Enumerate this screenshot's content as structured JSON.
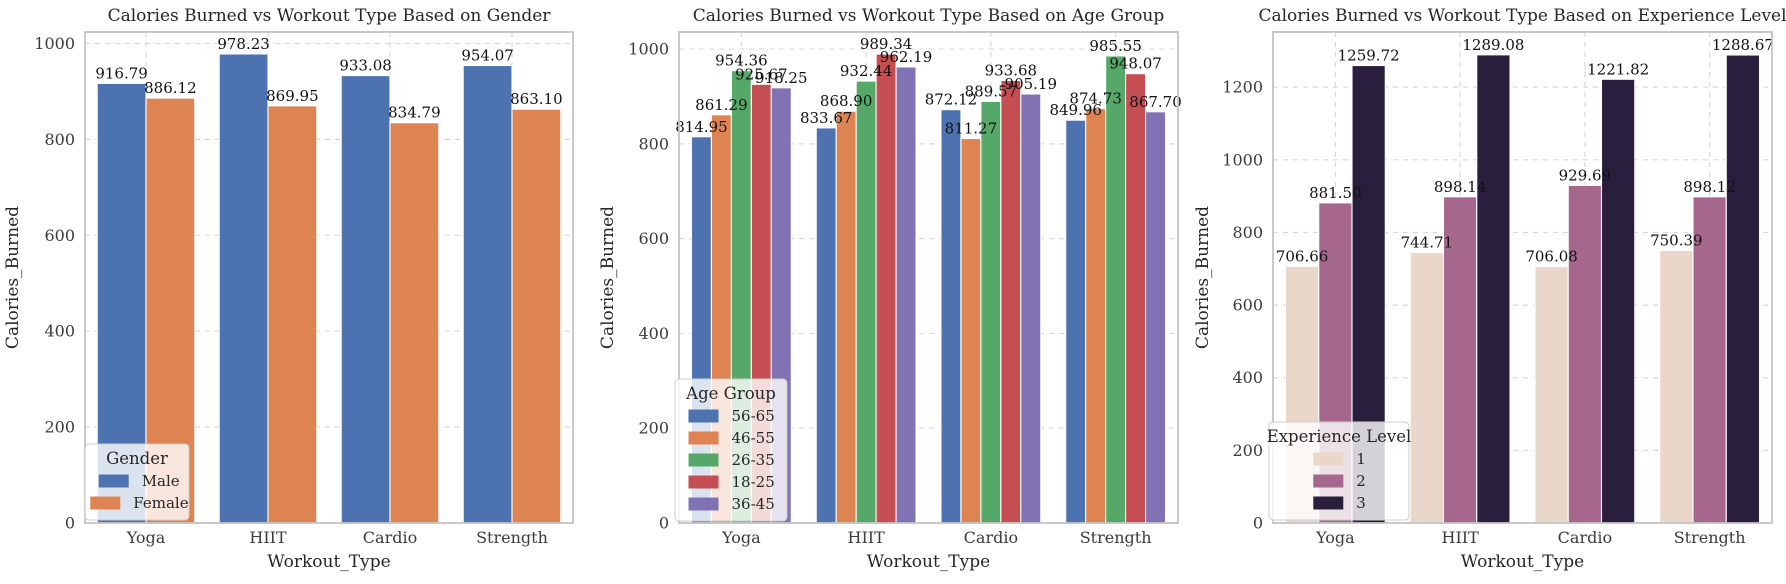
{
  "figure": {
    "background": "#ffffff",
    "text_color": "#262626",
    "tick_color": "#3b3b3b",
    "grid_color": "#d9d9d9",
    "spine_color": "#c3c3c3",
    "bar_edge_color": "#ffffff",
    "legend_bg": "rgba(255,255,255,0.8)",
    "legend_border": "#cccccc"
  },
  "chart_data": [
    {
      "type": "bar",
      "title": "Calories Burned vs Workout Type Based on Gender",
      "xlabel": "Workout_Type",
      "ylabel": "Calories_Burned",
      "categories": [
        "Yoga",
        "HIIT",
        "Cardio",
        "Strength"
      ],
      "legend_title": "Gender",
      "legend_position": "lower left",
      "grid": true,
      "ylim": [
        0,
        1024
      ],
      "yticks": [
        0,
        200,
        400,
        600,
        800,
        1000
      ],
      "series": [
        {
          "name": "Male",
          "color": "#4C72B0",
          "values": [
            916.79,
            978.23,
            933.08,
            954.07
          ]
        },
        {
          "name": "Female",
          "color": "#DD8452",
          "values": [
            886.12,
            869.95,
            834.79,
            863.1
          ]
        }
      ],
      "value_labels": [
        [
          "916.79",
          "978.23",
          "933.08",
          "954.07"
        ],
        [
          "886.12",
          "869.95",
          "834.79",
          "863.10"
        ]
      ]
    },
    {
      "type": "bar",
      "title": "Calories Burned vs Workout Type Based on Age Group",
      "xlabel": "Workout_Type",
      "ylabel": "Calories_Burned",
      "categories": [
        "Yoga",
        "HIIT",
        "Cardio",
        "Strength"
      ],
      "legend_title": "Age Group",
      "legend_position": "lower left",
      "grid": true,
      "ylim": [
        0,
        1036
      ],
      "yticks": [
        0,
        200,
        400,
        600,
        800,
        1000
      ],
      "series": [
        {
          "name": "56-65",
          "color": "#4C72B0",
          "values": [
            814.95,
            833.67,
            872.12,
            849.96
          ]
        },
        {
          "name": "46-55",
          "color": "#DD8452",
          "values": [
            861.29,
            868.9,
            811.27,
            874.73
          ]
        },
        {
          "name": "26-35",
          "color": "#55A868",
          "values": [
            954.36,
            932.44,
            889.57,
            985.55
          ]
        },
        {
          "name": "18-25",
          "color": "#C44E52",
          "values": [
            925.67,
            989.34,
            933.68,
            948.07
          ]
        },
        {
          "name": "36-45",
          "color": "#8172B3",
          "values": [
            918.25,
            962.19,
            905.19,
            867.7
          ]
        }
      ],
      "value_labels": [
        [
          "814.95",
          "833.67",
          "872.12",
          "849.96"
        ],
        [
          "861.29",
          "868.90",
          "811.27",
          "874.73"
        ],
        [
          "954.36",
          "932.44",
          "889.57",
          "985.55"
        ],
        [
          "925.67",
          "989.34",
          "933.68",
          "948.07"
        ],
        [
          "918.25",
          "962.19",
          "905.19",
          "867.70"
        ]
      ]
    },
    {
      "type": "bar",
      "title": "Calories Burned vs Workout Type Based on Experience Level",
      "xlabel": "Workout_Type",
      "ylabel": "Calories_Burned",
      "categories": [
        "Yoga",
        "HIIT",
        "Cardio",
        "Strength"
      ],
      "legend_title": "Experience Level",
      "legend_position": "lower left",
      "grid": true,
      "ylim": [
        0,
        1352
      ],
      "yticks": [
        0,
        200,
        400,
        600,
        800,
        1000,
        1200
      ],
      "series": [
        {
          "name": "1",
          "color": "#EBD6CA",
          "values": [
            706.66,
            744.71,
            706.08,
            750.39
          ]
        },
        {
          "name": "2",
          "color": "#A5688C",
          "values": [
            881.5,
            898.14,
            929.69,
            898.12
          ]
        },
        {
          "name": "3",
          "color": "#2A1E3D",
          "values": [
            1259.72,
            1289.08,
            1221.82,
            1288.67
          ]
        }
      ],
      "value_labels": [
        [
          "706.66",
          "744.71",
          "706.08",
          "750.39"
        ],
        [
          "881.50",
          "898.14",
          "929.69",
          "898.12"
        ],
        [
          "1259.72",
          "1289.08",
          "1221.82",
          "1288.67"
        ]
      ]
    }
  ]
}
